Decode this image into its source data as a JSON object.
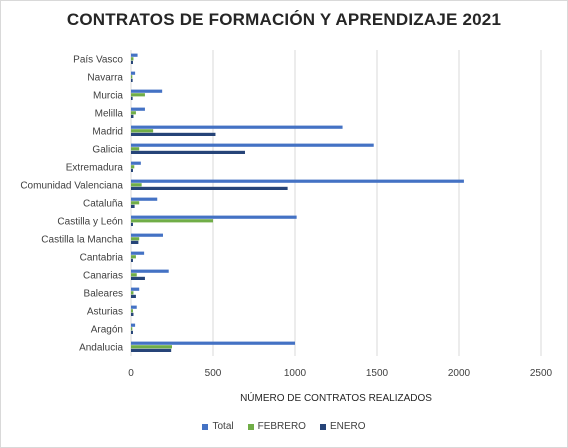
{
  "chart_data": {
    "type": "bar",
    "orientation": "horizontal",
    "title": "CONTRATOS DE FORMACIÓN Y APRENDIZAJE 2021",
    "xlabel": "NÚMERO DE CONTRATOS REALIZADOS",
    "ylabel": "",
    "xlim": [
      0,
      2500
    ],
    "xticks": [
      "0",
      "500",
      "1000",
      "1500",
      "2000",
      "2500"
    ],
    "grid": "vertical",
    "legend_position": "bottom",
    "categories": [
      "País Vasco",
      "Navarra",
      "Murcia",
      "Melilla",
      "Madrid",
      "Galicia",
      "Extremadura",
      "Comunidad Valenciana",
      "Cataluña",
      "Castilla y León",
      "Castilla la Mancha",
      "Cantabria",
      "Canarias",
      "Baleares",
      "Asturias",
      "Aragón",
      "Andalucia"
    ],
    "series": [
      {
        "name": "Total",
        "color": "#4472c4",
        "values": [
          40,
          25,
          190,
          85,
          1290,
          1480,
          60,
          2030,
          160,
          1010,
          195,
          80,
          230,
          50,
          35,
          25,
          1000
        ]
      },
      {
        "name": "FEBRERO",
        "color": "#70ad47",
        "values": [
          15,
          8,
          85,
          30,
          135,
          50,
          20,
          65,
          50,
          500,
          50,
          30,
          35,
          15,
          12,
          8,
          250
        ]
      },
      {
        "name": "ENERO",
        "color": "#264478",
        "values": [
          12,
          10,
          10,
          15,
          515,
          695,
          12,
          955,
          22,
          12,
          45,
          12,
          85,
          30,
          15,
          12,
          245
        ]
      }
    ]
  }
}
